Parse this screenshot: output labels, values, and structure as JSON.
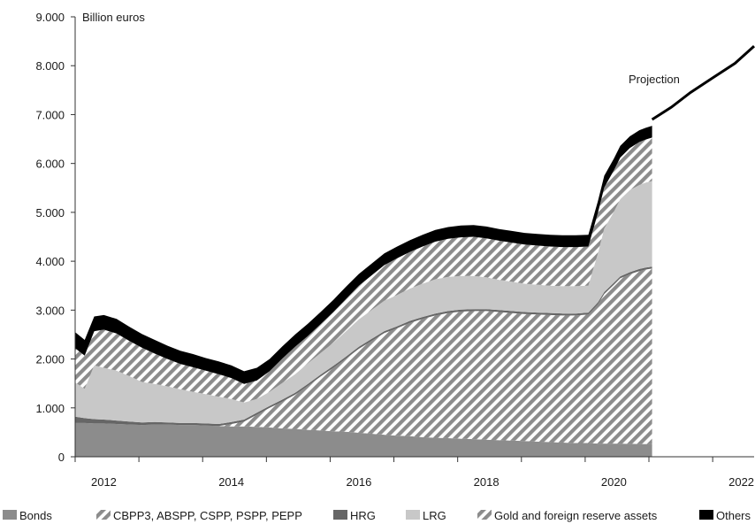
{
  "chart_data": {
    "type": "area",
    "stacked": true,
    "unit_label": "Billion euros",
    "title": "",
    "xlabel": "",
    "ylabel": "",
    "xlim": [
      2011.55,
      2022.2
    ],
    "ylim": [
      0,
      9000
    ],
    "y_ticks": [
      0,
      1000,
      2000,
      3000,
      4000,
      5000,
      6000,
      7000,
      8000,
      9000
    ],
    "y_tick_labels": [
      "0",
      "1.000",
      "2.000",
      "3.000",
      "4.000",
      "5.000",
      "6.000",
      "7.000",
      "8.000",
      "9.000"
    ],
    "x_tick_positions": [
      2011.55,
      2012.55,
      2013.55,
      2014.55,
      2015.55,
      2016.55,
      2017.55,
      2018.55,
      2019.55,
      2020.55,
      2021.55
    ],
    "x_labels": [
      {
        "value": 2012.0,
        "label": "2012"
      },
      {
        "value": 2014.0,
        "label": "2014"
      },
      {
        "value": 2016.0,
        "label": "2016"
      },
      {
        "value": 2018.0,
        "label": "2018"
      },
      {
        "value": 2020.0,
        "label": "2020"
      },
      {
        "value": 2022.0,
        "label": "2022"
      }
    ],
    "grid": false,
    "legend_position": "bottom",
    "x": [
      2011.55,
      2011.7,
      2011.85,
      2012.0,
      2012.2,
      2012.4,
      2012.6,
      2012.8,
      2013.0,
      2013.2,
      2013.4,
      2013.6,
      2013.8,
      2014.0,
      2014.2,
      2014.4,
      2014.6,
      2014.8,
      2015.0,
      2015.2,
      2015.4,
      2015.6,
      2015.8,
      2016.0,
      2016.2,
      2016.4,
      2016.6,
      2016.8,
      2017.0,
      2017.2,
      2017.4,
      2017.6,
      2017.8,
      2018.0,
      2018.2,
      2018.4,
      2018.6,
      2018.8,
      2019.0,
      2019.2,
      2019.4,
      2019.6,
      2019.75,
      2019.85,
      2020.0,
      2020.1,
      2020.25,
      2020.4,
      2020.5,
      2020.6
    ],
    "series": [
      {
        "name": "Bonds",
        "values": [
          690,
          690,
          680,
          680,
          670,
          660,
          650,
          660,
          660,
          650,
          650,
          640,
          630,
          620,
          620,
          610,
          600,
          580,
          570,
          550,
          540,
          520,
          510,
          490,
          470,
          450,
          430,
          420,
          400,
          390,
          380,
          370,
          360,
          350,
          340,
          330,
          320,
          310,
          300,
          290,
          280,
          280,
          270,
          270,
          270,
          270,
          265,
          260,
          260,
          260
        ]
      },
      {
        "name": "CBPP3, ABSPP, CSPP, PSPP, PEPP",
        "values": [
          0,
          0,
          0,
          0,
          0,
          0,
          0,
          0,
          0,
          0,
          0,
          0,
          0,
          50,
          100,
          250,
          400,
          550,
          700,
          900,
          1100,
          1300,
          1500,
          1720,
          1900,
          2080,
          2200,
          2320,
          2420,
          2500,
          2560,
          2600,
          2620,
          2630,
          2620,
          2610,
          2600,
          2600,
          2600,
          2600,
          2610,
          2630,
          2850,
          3060,
          3250,
          3380,
          3470,
          3540,
          3570,
          3590
        ]
      },
      {
        "name": "HRG",
        "values": [
          130,
          100,
          90,
          80,
          70,
          60,
          50,
          50,
          40,
          40,
          40,
          40,
          40,
          40,
          40,
          40,
          40,
          40,
          40,
          40,
          40,
          40,
          40,
          40,
          40,
          40,
          40,
          40,
          40,
          40,
          40,
          40,
          40,
          40,
          40,
          40,
          40,
          40,
          40,
          40,
          40,
          40,
          40,
          40,
          40,
          40,
          40,
          40,
          40,
          40
        ]
      },
      {
        "name": "LRG",
        "values": [
          700,
          600,
          1100,
          1060,
          1020,
          930,
          830,
          780,
          740,
          690,
          640,
          600,
          560,
          470,
          350,
          280,
          290,
          340,
          380,
          420,
          440,
          470,
          520,
          560,
          590,
          620,
          640,
          660,
          680,
          700,
          700,
          690,
          680,
          650,
          620,
          600,
          580,
          570,
          560,
          560,
          560,
          550,
          1000,
          1300,
          1450,
          1580,
          1680,
          1720,
          1740,
          1750
        ]
      },
      {
        "name": "Gold and foreign reserve assets",
        "values": [
          700,
          680,
          700,
          780,
          760,
          720,
          700,
          620,
          560,
          520,
          500,
          480,
          460,
          430,
          380,
          380,
          420,
          500,
          560,
          560,
          590,
          630,
          660,
          690,
          710,
          730,
          750,
          750,
          760,
          770,
          780,
          790,
          800,
          800,
          800,
          800,
          800,
          800,
          800,
          800,
          800,
          800,
          830,
          840,
          850,
          850,
          860,
          880,
          880,
          890
        ]
      },
      {
        "name": "Others",
        "values": [
          330,
          320,
          300,
          300,
          300,
          290,
          280,
          280,
          270,
          270,
          270,
          260,
          260,
          260,
          260,
          260,
          250,
          250,
          250,
          250,
          250,
          250,
          250,
          240,
          240,
          240,
          240,
          240,
          240,
          240,
          240,
          240,
          240,
          240,
          240,
          240,
          240,
          240,
          240,
          240,
          240,
          240,
          240,
          240,
          240,
          240,
          240,
          240,
          240,
          240
        ]
      }
    ],
    "projection": {
      "label": "Projection",
      "x": [
        2020.6,
        2020.9,
        2021.2,
        2021.55,
        2021.9,
        2022.2
      ],
      "values": [
        6900,
        7150,
        7450,
        7750,
        8050,
        8400
      ]
    },
    "colors": {
      "Bonds": "#8c8c8c",
      "CBPP3, ABSPP, CSPP, PSPP, PEPP": "#8c8c8c",
      "HRG": "#666666",
      "LRG": "#c8c8c8",
      "Gold and foreign reserve assets": "#8c8c8c",
      "Others": "#000000",
      "projection": "#000000"
    }
  }
}
